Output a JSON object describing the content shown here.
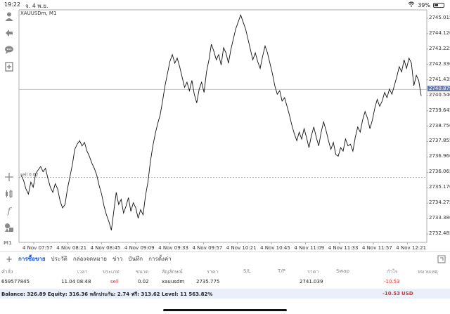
{
  "status": {
    "time": "19:22",
    "date": "จ. 4 พ.ย.",
    "battery": "39%",
    "wifi_icon": "wifi-icon",
    "battery_icon": "battery-icon"
  },
  "sidebar": {
    "icons": [
      "person-icon",
      "thumbs-icon",
      "chat-icon",
      "add-document-icon",
      "crosshair-icon",
      "candles-icon",
      "function-icon",
      "shapes-icon"
    ],
    "timeframe": "M1"
  },
  "chart": {
    "symbol_label": "XAUUSDm, M1",
    "current_price": "2740.879",
    "entry_label": "sell 0.02"
  },
  "chart_data": {
    "type": "line",
    "series": [
      {
        "values": [
          2735.9,
          2735.6,
          2735.1,
          2734.8,
          2735.5,
          2735.2,
          2736.0,
          2736.2,
          2736.4,
          2736.1,
          2736.3,
          2735.7,
          2735.2,
          2734.9,
          2735.4,
          2735.1,
          2734.4,
          2734.0,
          2734.2,
          2735.1,
          2735.8,
          2736.5,
          2737.4,
          2737.7,
          2737.9,
          2737.6,
          2737.8,
          2737.3,
          2737.0,
          2736.6,
          2736.3,
          2735.9,
          2735.3,
          2734.8,
          2734.1,
          2733.6,
          2733.2,
          2732.7,
          2733.8,
          2734.9,
          2734.2,
          2734.5,
          2733.7,
          2734.1,
          2734.6,
          2733.8,
          2734.3,
          2734.0,
          2733.4,
          2733.9,
          2733.6,
          2734.7,
          2735.5,
          2736.7,
          2737.6,
          2738.3,
          2738.9,
          2739.4,
          2740.2,
          2741.1,
          2741.8,
          2742.5,
          2742.9,
          2742.4,
          2742.7,
          2742.2,
          2741.6,
          2741.0,
          2741.3,
          2740.8,
          2741.4,
          2740.6,
          2740.1,
          2740.9,
          2741.3,
          2740.7,
          2741.9,
          2742.6,
          2743.5,
          2743.1,
          2742.6,
          2742.9,
          2742.3,
          2743.3,
          2743.0,
          2742.4,
          2743.2,
          2743.8,
          2744.4,
          2744.8,
          2745.2,
          2744.8,
          2744.4,
          2743.8,
          2743.2,
          2742.6,
          2743.0,
          2742.5,
          2742.1,
          2742.8,
          2743.4,
          2743.0,
          2742.4,
          2741.8,
          2741.1,
          2740.6,
          2740.8,
          2740.2,
          2740.4,
          2739.9,
          2739.4,
          2738.8,
          2738.3,
          2737.9,
          2738.4,
          2738.0,
          2738.6,
          2738.1,
          2737.5,
          2738.2,
          2738.7,
          2738.1,
          2737.6,
          2738.4,
          2739.0,
          2738.5,
          2737.9,
          2737.4,
          2737.8,
          2737.1,
          2737.0,
          2737.5,
          2737.3,
          2738.0,
          2737.6,
          2737.7,
          2737.3,
          2738.1,
          2738.7,
          2738.4,
          2739.1,
          2739.6,
          2739.2,
          2738.6,
          2739.1,
          2739.8,
          2740.3,
          2739.9,
          2740.2,
          2740.7,
          2740.4,
          2740.9,
          2740.6,
          2741.1,
          2741.6,
          2742.2,
          2741.9,
          2742.6,
          2742.1,
          2742.7,
          2742.4,
          2741.1,
          2741.7,
          2741.4,
          2740.5
        ]
      }
    ],
    "x_ticks": [
      "4 Nov 07:57",
      "4 Nov 08:21",
      "4 Nov 08:45",
      "4 Nov 09:09",
      "4 Nov 09:33",
      "4 Nov 09:57",
      "4 Nov 10:21",
      "4 Nov 10:45",
      "4 Nov 11:09",
      "4 Nov 11:33",
      "4 Nov 11:57",
      "4 Nov 12:21"
    ],
    "y_ticks": [
      "2745.015",
      "2744.120",
      "2743.225",
      "2742.330",
      "2741.435",
      "2740.540",
      "2739.645",
      "2738.750",
      "2737.855",
      "2736.960",
      "2736.065",
      "2735.170",
      "2734.275",
      "2733.380",
      "2732.485"
    ],
    "y_range": [
      2732.0,
      2745.5
    ],
    "current_level": 2740.879,
    "entry_level": 2735.775
  },
  "tabs": [
    "การซื้อขาย",
    "ประวัติ",
    "กล่องจดหมาย",
    "ข่าว",
    "บันทึก",
    "การตั้งค่า"
  ],
  "table": {
    "headers": [
      "คำสั่ง",
      "เวลา",
      "ประเภท",
      "ขนาด",
      "สัญลักษณ์",
      "ราคา",
      "S/L",
      "T/P",
      "ราคา",
      "Swap",
      "กำไร",
      "หมายเหตุ"
    ],
    "row": {
      "order": "659577845",
      "time": "11.04 08:48",
      "type": "sell",
      "size": "0.02",
      "symbol": "xauusdm",
      "open_price": "2735.775",
      "current_price": "2741.039",
      "profit": "-10.53"
    }
  },
  "footer": {
    "summary": "Balance: 326.89 Equity: 316.36 หลักประกัน: 2.74 ฟรี: 313.62 Level: 11 563.82%",
    "total": "-10.53",
    "currency": "USD"
  }
}
